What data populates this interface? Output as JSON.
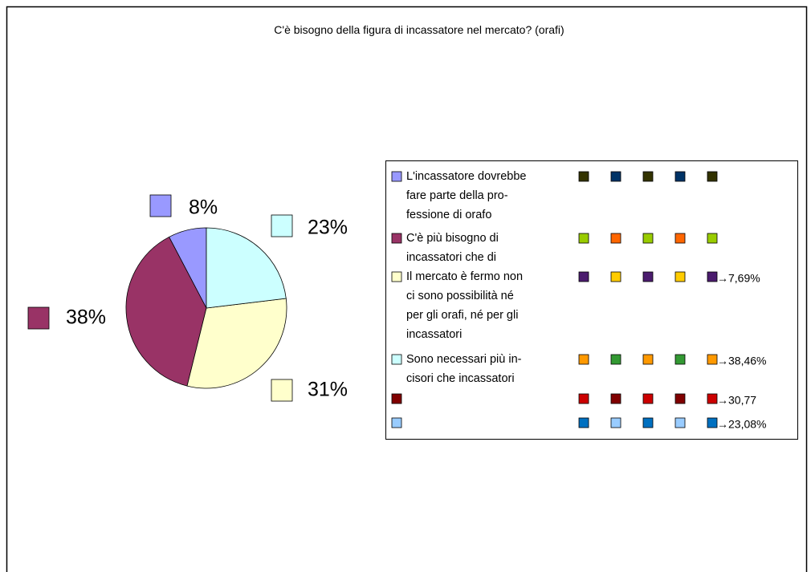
{
  "chart_data": {
    "type": "pie",
    "title": "C'è bisogno della figura di incassatore nel mercato? (orafi)",
    "categories": [
      "L'incassatore dovrebbe\nfare parte della pro-\nfessione di orafo",
      "C'è più bisogno di\nincassatori che di",
      "Il mercato è fermo non\nci sono possibilità né\nper gli orafi, né per gli\nincassatori",
      "Sono necessari più in-\ncisori che incassatori"
    ],
    "values": [
      7.69,
      38.46,
      30.77,
      23.08
    ],
    "value_labels": [
      "8%",
      "38%",
      "31%",
      "23%"
    ],
    "colors": [
      "#9999ff",
      "#993366",
      "#ffffcc",
      "#ccffff"
    ],
    "annotations": [
      "→7,69%",
      "→38,46%",
      "→30,77",
      "→23,08%"
    ]
  }
}
